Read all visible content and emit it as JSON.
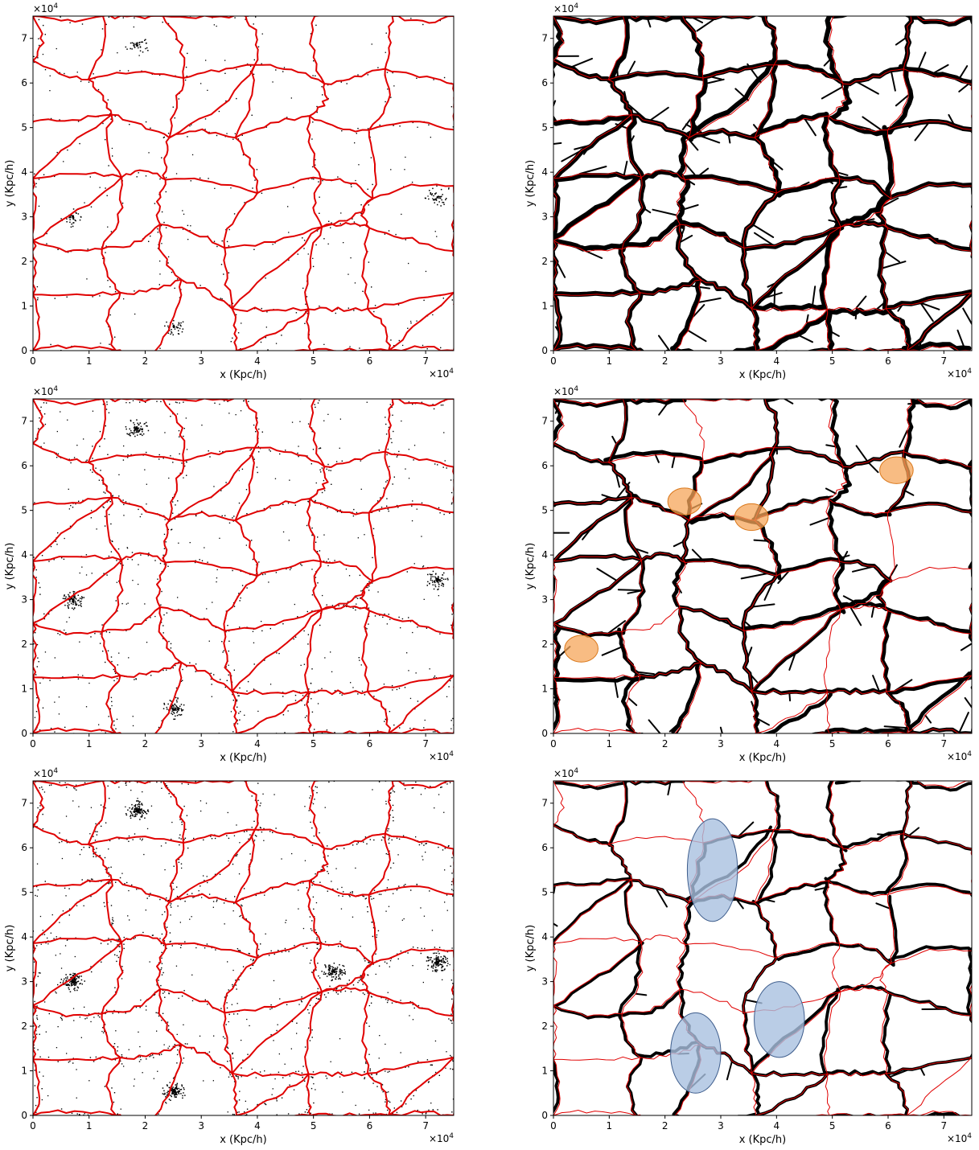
{
  "chart_data": {
    "type": "scatter",
    "layout": "3 rows x 2 columns",
    "panels": [
      {
        "name": "row1-left",
        "xlabel": "x (Kpc/h)",
        "ylabel": "y (Kpc/h)",
        "x_multiplier": "×10",
        "x_exponent": "4",
        "y_multiplier": "×10",
        "y_exponent": "4",
        "xlim": [
          0,
          75000
        ],
        "ylim": [
          0,
          75000
        ],
        "xticks": [
          0,
          10000,
          20000,
          30000,
          40000,
          50000,
          60000,
          70000
        ],
        "yticks": [
          0,
          10000,
          20000,
          30000,
          40000,
          50000,
          60000,
          70000
        ],
        "xtick_labels": [
          "0",
          "1",
          "2",
          "3",
          "4",
          "5",
          "6",
          "7"
        ],
        "ytick_labels": [
          "0",
          "1",
          "2",
          "3",
          "4",
          "5",
          "6",
          "7"
        ],
        "layers": [
          "galaxy points (black)",
          "filament network (red)"
        ],
        "filament_color": "#e00000",
        "filament_width": "thick",
        "point_density": "sparse",
        "clusters": [
          [
            18500,
            68500
          ],
          [
            7000,
            30000
          ],
          [
            72000,
            34500
          ],
          [
            25000,
            5500
          ]
        ],
        "highlights": []
      },
      {
        "name": "row1-right",
        "xlabel": "x (Kpc/h)",
        "ylabel": "y (Kpc/h)",
        "x_multiplier": "×10",
        "x_exponent": "4",
        "y_multiplier": "×10",
        "y_exponent": "4",
        "xlim": [
          0,
          75000
        ],
        "ylim": [
          0,
          75000
        ],
        "xticks": [
          0,
          10000,
          20000,
          30000,
          40000,
          50000,
          60000,
          70000
        ],
        "yticks": [
          0,
          10000,
          20000,
          30000,
          40000,
          50000,
          60000,
          70000
        ],
        "xtick_labels": [
          "0",
          "1",
          "2",
          "3",
          "4",
          "5",
          "6",
          "7"
        ],
        "ytick_labels": [
          "0",
          "1",
          "2",
          "3",
          "4",
          "5",
          "6",
          "7"
        ],
        "layers": [
          "skeleton (black)",
          "filament network (red, thin)"
        ],
        "filament_color": "#e00000",
        "filament_width": "thin",
        "skeleton_density": "dense",
        "highlights": []
      },
      {
        "name": "row2-left",
        "xlabel": "x (Kpc/h)",
        "ylabel": "y (Kpc/h)",
        "x_multiplier": "×10",
        "x_exponent": "4",
        "y_multiplier": "×10",
        "y_exponent": "4",
        "xlim": [
          0,
          75000
        ],
        "ylim": [
          0,
          75000
        ],
        "xticks": [
          0,
          10000,
          20000,
          30000,
          40000,
          50000,
          60000,
          70000
        ],
        "yticks": [
          0,
          10000,
          20000,
          30000,
          40000,
          50000,
          60000,
          70000
        ],
        "xtick_labels": [
          "0",
          "1",
          "2",
          "3",
          "4",
          "5",
          "6",
          "7"
        ],
        "ytick_labels": [
          "0",
          "1",
          "2",
          "3",
          "4",
          "5",
          "6",
          "7"
        ],
        "layers": [
          "galaxy points (black)",
          "filament network (red)"
        ],
        "filament_color": "#e00000",
        "filament_width": "thick",
        "point_density": "medium",
        "clusters": [
          [
            18500,
            68500
          ],
          [
            7000,
            30000
          ],
          [
            72000,
            34500
          ],
          [
            25000,
            5500
          ]
        ],
        "highlights": []
      },
      {
        "name": "row2-right",
        "xlabel": "x (Kpc/h)",
        "ylabel": "y (Kpc/h)",
        "x_multiplier": "×10",
        "x_exponent": "4",
        "y_multiplier": "×10",
        "y_exponent": "4",
        "xlim": [
          0,
          75000
        ],
        "ylim": [
          0,
          75000
        ],
        "xticks": [
          0,
          10000,
          20000,
          30000,
          40000,
          50000,
          60000,
          70000
        ],
        "yticks": [
          0,
          10000,
          20000,
          30000,
          40000,
          50000,
          60000,
          70000
        ],
        "xtick_labels": [
          "0",
          "1",
          "2",
          "3",
          "4",
          "5",
          "6",
          "7"
        ],
        "ytick_labels": [
          "0",
          "1",
          "2",
          "3",
          "4",
          "5",
          "6",
          "7"
        ],
        "layers": [
          "skeleton (black)",
          "filament network (red, thin)"
        ],
        "filament_color": "#e00000",
        "filament_width": "thin",
        "skeleton_density": "medium",
        "highlights": [
          {
            "shape": "circle",
            "color": "#f5a55a",
            "edge": "#d9771a",
            "cx": 23500,
            "cy": 52000,
            "r": 3000
          },
          {
            "shape": "circle",
            "color": "#f5a55a",
            "edge": "#d9771a",
            "cx": 35500,
            "cy": 48500,
            "r": 3000
          },
          {
            "shape": "circle",
            "color": "#f5a55a",
            "edge": "#d9771a",
            "cx": 61500,
            "cy": 59000,
            "r": 3000
          },
          {
            "shape": "circle",
            "color": "#f5a55a",
            "edge": "#d9771a",
            "cx": 5000,
            "cy": 19000,
            "r": 3000
          }
        ]
      },
      {
        "name": "row3-left",
        "xlabel": "x (Kpc/h)",
        "ylabel": "y (Kpc/h)",
        "x_multiplier": "×10",
        "x_exponent": "4",
        "y_multiplier": "×10",
        "y_exponent": "4",
        "xlim": [
          0,
          75000
        ],
        "ylim": [
          0,
          75000
        ],
        "xticks": [
          0,
          10000,
          20000,
          30000,
          40000,
          50000,
          60000,
          70000
        ],
        "yticks": [
          0,
          10000,
          20000,
          30000,
          40000,
          50000,
          60000,
          70000
        ],
        "xtick_labels": [
          "0",
          "1",
          "2",
          "3",
          "4",
          "5",
          "6",
          "7"
        ],
        "ytick_labels": [
          "0",
          "1",
          "2",
          "3",
          "4",
          "5",
          "6",
          "7"
        ],
        "layers": [
          "galaxy points (black)",
          "filament network (red)"
        ],
        "filament_color": "#e00000",
        "filament_width": "thick",
        "point_density": "dense",
        "clusters": [
          [
            18500,
            68500
          ],
          [
            7000,
            30000
          ],
          [
            72000,
            34500
          ],
          [
            25000,
            5500
          ],
          [
            53500,
            32500
          ]
        ],
        "highlights": []
      },
      {
        "name": "row3-right",
        "xlabel": "x (Kpc/h)",
        "ylabel": "y (Kpc/h)",
        "x_multiplier": "×10",
        "x_exponent": "4",
        "y_multiplier": "×10",
        "y_exponent": "4",
        "xlim": [
          0,
          75000
        ],
        "ylim": [
          0,
          75000
        ],
        "xticks": [
          0,
          10000,
          20000,
          30000,
          40000,
          50000,
          60000,
          70000
        ],
        "yticks": [
          0,
          10000,
          20000,
          30000,
          40000,
          50000,
          60000,
          70000
        ],
        "xtick_labels": [
          "0",
          "1",
          "2",
          "3",
          "4",
          "5",
          "6",
          "7"
        ],
        "ytick_labels": [
          "0",
          "1",
          "2",
          "3",
          "4",
          "5",
          "6",
          "7"
        ],
        "layers": [
          "skeleton (black)",
          "filament network (red, thin)"
        ],
        "filament_color": "#e00000",
        "filament_width": "thin",
        "skeleton_density": "sparse",
        "highlights": [
          {
            "shape": "ellipse",
            "color": "#a9c1e0",
            "edge": "#3e5d8c",
            "cx": 28500,
            "cy": 55000,
            "rx": 4500,
            "ry": 11500
          },
          {
            "shape": "ellipse",
            "color": "#a9c1e0",
            "edge": "#3e5d8c",
            "cx": 40500,
            "cy": 21500,
            "rx": 4500,
            "ry": 8500
          },
          {
            "shape": "ellipse",
            "color": "#a9c1e0",
            "edge": "#3e5d8c",
            "cx": 25500,
            "cy": 14000,
            "rx": 4500,
            "ry": 9000
          }
        ]
      }
    ]
  }
}
